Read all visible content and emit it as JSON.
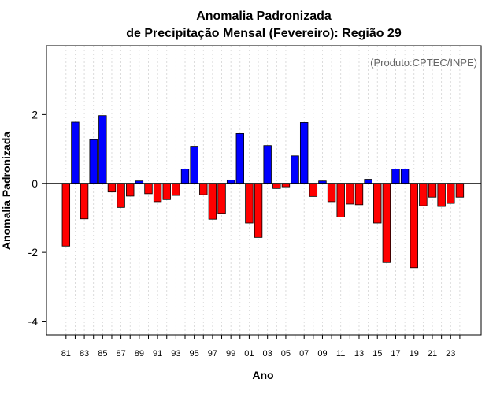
{
  "chart_data": {
    "type": "bar",
    "title_line1": "Anomalia Padronizada",
    "title_line2": "de Precipitação Mensal (Fevereiro): Região 29",
    "xlabel": "Ano",
    "ylabel": "Anomalia Padronizada",
    "credit": "(Produto:CPTEC/INPE)",
    "ylim": [
      -4.4,
      4.0
    ],
    "yticks": [
      "-4",
      "-2",
      "0",
      "2"
    ],
    "ytick_values": [
      -4,
      -2,
      0,
      2
    ],
    "grid": "vertical dotted",
    "categories": [
      "81",
      "82",
      "83",
      "84",
      "85",
      "86",
      "87",
      "88",
      "89",
      "90",
      "91",
      "92",
      "93",
      "94",
      "95",
      "96",
      "97",
      "98",
      "99",
      "00",
      "01",
      "02",
      "03",
      "04",
      "05",
      "06",
      "07",
      "08",
      "09",
      "10",
      "11",
      "12",
      "13",
      "14",
      "15",
      "16",
      "17",
      "18",
      "19",
      "20",
      "21",
      "22",
      "23",
      "24"
    ],
    "xtick_labels": [
      "81",
      "83",
      "85",
      "87",
      "89",
      "91",
      "93",
      "95",
      "97",
      "99",
      "01",
      "03",
      "05",
      "07",
      "09",
      "11",
      "13",
      "15",
      "17",
      "19",
      "21",
      "23"
    ],
    "values": [
      -1.82,
      1.78,
      -1.03,
      1.27,
      1.97,
      -0.25,
      -0.7,
      -0.37,
      0.07,
      -0.3,
      -0.53,
      -0.47,
      -0.35,
      0.42,
      1.08,
      -0.33,
      -1.04,
      -0.87,
      0.1,
      1.45,
      -1.15,
      -1.57,
      1.1,
      -0.15,
      -0.1,
      0.8,
      1.77,
      -0.38,
      0.07,
      -0.53,
      -0.98,
      -0.6,
      -0.62,
      0.12,
      -1.15,
      -2.3,
      0.42,
      0.42,
      -2.45,
      -0.65,
      -0.4,
      -0.67,
      -0.58,
      -0.4
    ],
    "colors": {
      "positive": "#0000ff",
      "negative": "#ff0000",
      "border": "#000000",
      "grid": "#d3d3d3"
    }
  }
}
